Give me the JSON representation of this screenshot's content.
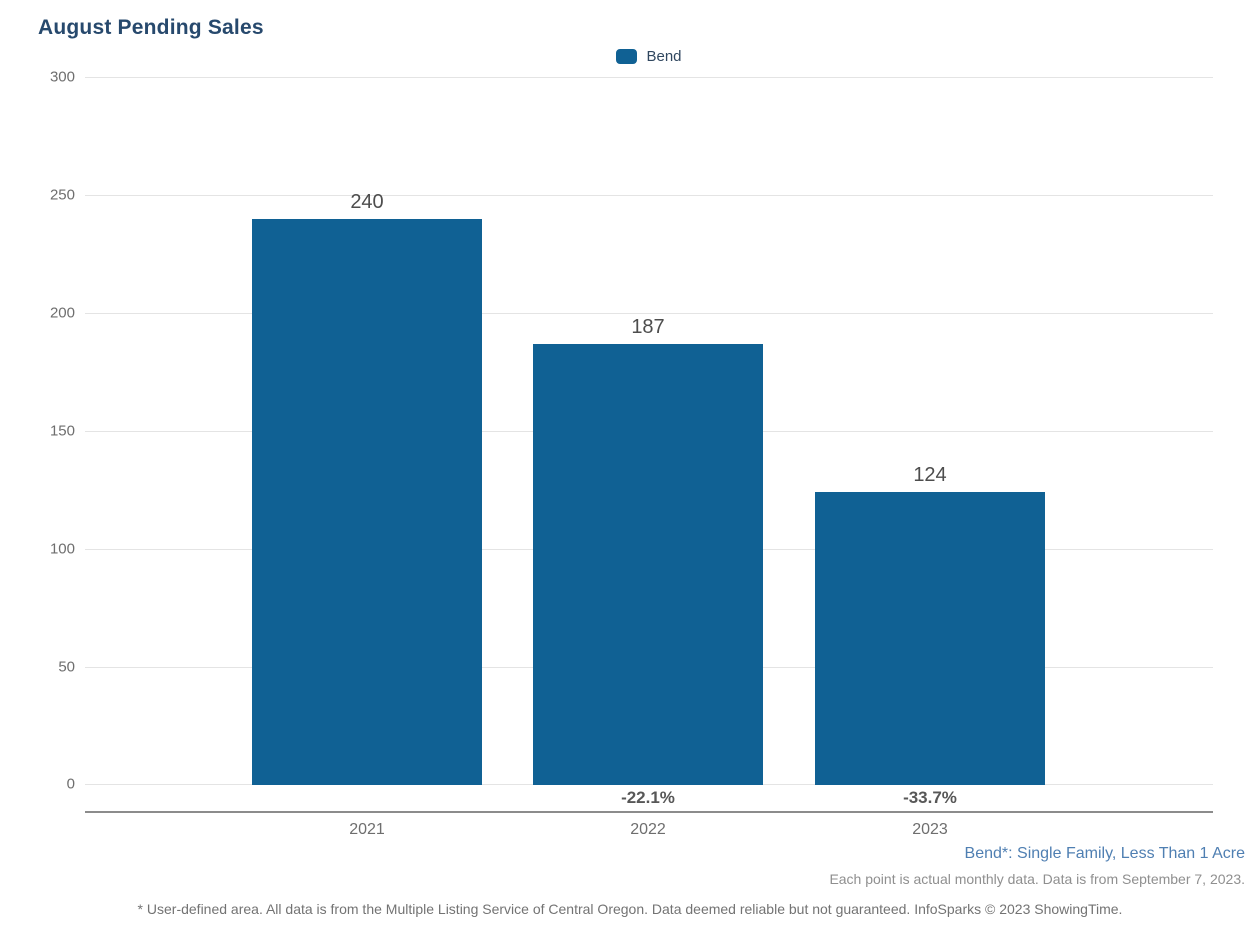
{
  "chart": {
    "title": "August Pending Sales",
    "legend": [
      {
        "label": "Bend",
        "color": "#106194"
      }
    ],
    "footnote_series": "Bend*: Single Family, Less Than 1 Acre",
    "footnote_data": "Each point is actual monthly data. Data is from September 7, 2023.",
    "disclaimer": "* User-defined area. All data is from the Multiple Listing Service of Central Oregon. Data deemed reliable but not guaranteed. InfoSparks © 2023 ShowingTime."
  },
  "chart_data": {
    "type": "bar",
    "title": "August Pending Sales",
    "categories": [
      "2021",
      "2022",
      "2023"
    ],
    "series": [
      {
        "name": "Bend",
        "color": "#106194",
        "values": [
          240,
          187,
          124
        ]
      }
    ],
    "value_labels": [
      "240",
      "187",
      "124"
    ],
    "pct_change_labels": [
      "",
      "-22.1%",
      "-33.7%"
    ],
    "yticks": [
      "300",
      "250",
      "200",
      "150",
      "100",
      "50",
      "0"
    ],
    "ylim": [
      0,
      300
    ],
    "xlabel": "",
    "ylabel": "",
    "legend_position": "top-center",
    "grid": "horizontal-only",
    "colors": {
      "bar": "#106194",
      "title": "#27496d",
      "series_footnote": "#4f7fb2",
      "gridline": "#e4e4e4",
      "axis_line": "#8c8c8c"
    }
  }
}
